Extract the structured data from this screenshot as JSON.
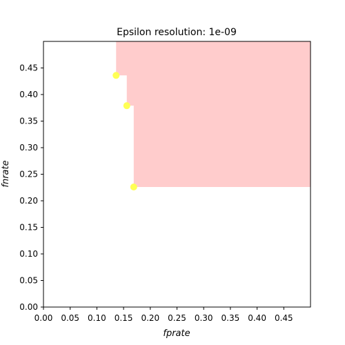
{
  "chart_data": {
    "type": "scatter",
    "title": "Epsilon resolution: 1e-09",
    "xlabel": "fprate",
    "ylabel": "fnrate",
    "xlim": [
      0,
      0.5
    ],
    "ylim": [
      0,
      0.5
    ],
    "xticks": [
      0.0,
      0.05,
      0.1,
      0.15,
      0.2,
      0.25,
      0.3,
      0.35,
      0.4,
      0.45
    ],
    "yticks": [
      0.0,
      0.05,
      0.1,
      0.15,
      0.2,
      0.25,
      0.3,
      0.35,
      0.4,
      0.45
    ],
    "xtick_labels": [
      "0.00",
      "0.05",
      "0.10",
      "0.15",
      "0.20",
      "0.25",
      "0.30",
      "0.35",
      "0.40",
      "0.45"
    ],
    "ytick_labels": [
      "0.00",
      "0.05",
      "0.10",
      "0.15",
      "0.20",
      "0.25",
      "0.30",
      "0.35",
      "0.40",
      "0.45"
    ],
    "grid": false,
    "points": [
      {
        "x": 0.136,
        "y": 0.436
      },
      {
        "x": 0.156,
        "y": 0.379
      },
      {
        "x": 0.169,
        "y": 0.226
      }
    ],
    "point_color": "#ffff55",
    "region_color": "#ffcccc",
    "dominated_region_boundary": [
      [
        0.136,
        0.5
      ],
      [
        0.136,
        0.436
      ],
      [
        0.156,
        0.436
      ],
      [
        0.156,
        0.379
      ],
      [
        0.169,
        0.379
      ],
      [
        0.169,
        0.226
      ],
      [
        0.5,
        0.226
      ],
      [
        0.5,
        0.5
      ]
    ]
  }
}
